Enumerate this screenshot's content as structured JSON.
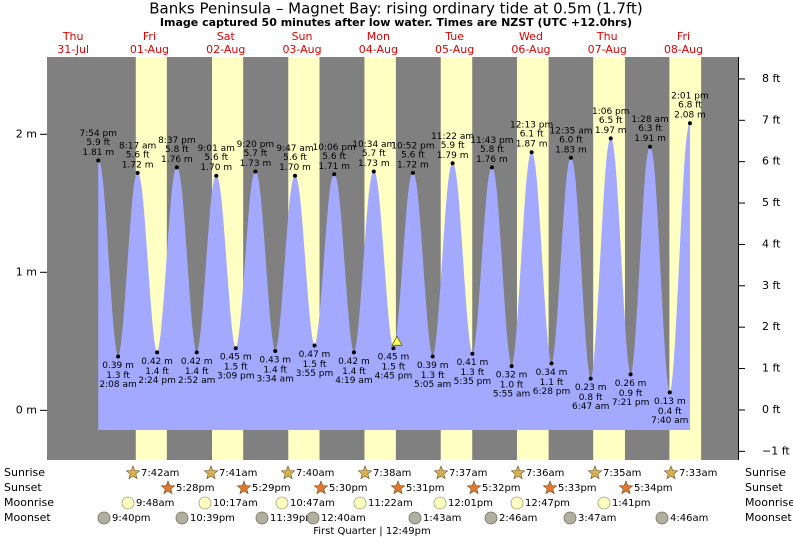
{
  "chart_data": {
    "type": "tide",
    "title": "Banks Peninsula – Magnet Bay: rising  ordinary tide at 0.5m (1.7ft)",
    "subtitle": "Image captured 50 minutes after low water. Times are NZST (UTC +12.0hrs)",
    "days": [
      {
        "day": "Thu",
        "date": "31-Jul"
      },
      {
        "day": "Fri",
        "date": "01-Aug"
      },
      {
        "day": "Sat",
        "date": "02-Aug"
      },
      {
        "day": "Sun",
        "date": "03-Aug"
      },
      {
        "day": "Mon",
        "date": "04-Aug"
      },
      {
        "day": "Tue",
        "date": "05-Aug"
      },
      {
        "day": "Wed",
        "date": "06-Aug"
      },
      {
        "day": "Thu",
        "date": "07-Aug"
      },
      {
        "day": "Fri",
        "date": "08-Aug"
      }
    ],
    "ylim": [
      -0.36,
      2.56
    ],
    "yticks": [
      {
        "value": 0,
        "label": "0 m"
      },
      {
        "value": 1,
        "label": "1 m"
      },
      {
        "value": 2,
        "label": "2 m"
      }
    ],
    "y2lim": [
      -1.21,
      8.53
    ],
    "y2ticks": [
      {
        "value": -1,
        "label": "−1 ft"
      },
      {
        "value": 0,
        "label": "0 ft"
      },
      {
        "value": 1,
        "label": "1 ft"
      },
      {
        "value": 2,
        "label": "2 ft"
      },
      {
        "value": 3,
        "label": "3 ft"
      },
      {
        "value": 4,
        "label": "4 ft"
      },
      {
        "value": 5,
        "label": "5 ft"
      },
      {
        "value": 6,
        "label": "6 ft"
      },
      {
        "value": 7,
        "label": "7 ft"
      },
      {
        "value": 8,
        "label": "8 ft"
      }
    ],
    "current_height": 0.5,
    "color": "#a3a9ff",
    "extremes": {
      "times": [
        "7:54 pm",
        "2:08 am",
        "8:17 am",
        "2:24 pm",
        "8:37 pm",
        "2:52 am",
        "9:01 am",
        "3:09 pm",
        "9:20 pm",
        "3:34 am",
        "9:47 am",
        "3:55 pm",
        "10:06 pm",
        "4:19 am",
        "10:34 am",
        "4:45 pm",
        "10:52 pm",
        "5:05 am",
        "11:22 am",
        "5:35 pm",
        "11:43 pm",
        "5:55 am",
        "12:13 pm",
        "6:28 pm",
        "12:35 am",
        "6:47 am",
        "1:06 pm",
        "7:21 pm",
        "1:28 am",
        "7:40 am",
        "2:01 pm"
      ],
      "values": [
        1.81,
        0.39,
        1.72,
        0.42,
        1.76,
        0.42,
        1.7,
        0.45,
        1.73,
        0.43,
        1.7,
        0.47,
        1.71,
        0.42,
        1.73,
        0.45,
        1.72,
        0.39,
        1.79,
        0.41,
        1.76,
        0.32,
        1.87,
        0.34,
        1.83,
        0.23,
        1.97,
        0.26,
        1.91,
        0.13,
        2.08
      ],
      "value_labels": [
        "1.81 m",
        "0.39 m",
        "1.72 m",
        "0.42 m",
        "1.76 m",
        "0.42 m",
        "1.70 m",
        "0.45 m",
        "1.73 m",
        "0.43 m",
        "1.70 m",
        "0.47 m",
        "1.71 m",
        "0.42 m",
        "1.73 m",
        "0.45 m",
        "1.72 m",
        "0.39 m",
        "1.79 m",
        "0.41 m",
        "1.76 m",
        "0.32 m",
        "1.87 m",
        "0.34 m",
        "1.83 m",
        "0.23 m",
        "1.97 m",
        "0.26 m",
        "1.91 m",
        "0.13 m",
        "2.08 m"
      ],
      "ft_labels": [
        "5.9 ft",
        "1.3 ft",
        "5.6 ft",
        "1.4 ft",
        "5.8 ft",
        "1.4 ft",
        "5.6 ft",
        "1.5 ft",
        "5.7 ft",
        "1.4 ft",
        "5.6 ft",
        "1.5 ft",
        "5.6 ft",
        "1.4 ft",
        "5.7 ft",
        "1.5 ft",
        "5.6 ft",
        "1.3 ft",
        "5.9 ft",
        "1.3 ft",
        "5.8 ft",
        "1.0 ft",
        "6.1 ft",
        "1.1 ft",
        "6.0 ft",
        "0.8 ft",
        "6.5 ft",
        "0.9 ft",
        "6.3 ft",
        "0.4 ft",
        "6.8 ft"
      ]
    },
    "rows": [
      {
        "name": "Sunrise",
        "times": [
          "7:42am",
          "7:41am",
          "7:40am",
          "7:38am",
          "7:37am",
          "7:36am",
          "7:35am",
          "7:33am"
        ]
      },
      {
        "name": "Sunset",
        "times": [
          "5:28pm",
          "5:29pm",
          "5:30pm",
          "5:31pm",
          "5:32pm",
          "5:33pm",
          "5:34pm"
        ]
      },
      {
        "name": "Moonrise",
        "times": [
          "9:48am",
          "10:17am",
          "10:47am",
          "11:22am",
          "12:01pm",
          "12:47pm",
          "1:41pm"
        ]
      },
      {
        "name": "Moonset",
        "times": [
          "9:40pm",
          "10:39pm",
          "11:39pm",
          "12:40am",
          "1:43am",
          "2:46am",
          "3:47am",
          "4:46am"
        ]
      }
    ],
    "moon_phase": "First Quarter | 12:49pm"
  }
}
